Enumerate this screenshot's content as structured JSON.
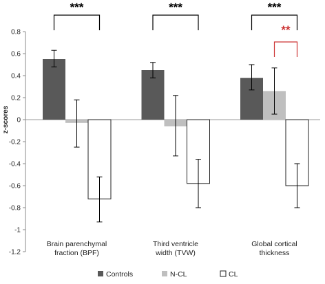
{
  "chart_data": {
    "type": "bar",
    "ylabel": "z-scores",
    "ylim": [
      -1.2,
      0.8
    ],
    "yticks": [
      "0.8",
      "0.6",
      "0.4",
      "0.2",
      "0",
      "-0.2",
      "-0.4",
      "-0.6",
      "-0.8",
      "-1",
      "-1.2"
    ],
    "ytick_values": [
      0.8,
      0.6,
      0.4,
      0.2,
      0,
      -0.2,
      -0.4,
      -0.6,
      -0.8,
      -1,
      -1.2
    ],
    "categories": [
      [
        "Brain parenchymal",
        "fraction (BPF)"
      ],
      [
        "Third ventricle",
        "width (TVW)"
      ],
      [
        "Global cortical",
        "thickness"
      ]
    ],
    "series": [
      {
        "name": "Controls",
        "color": "#595959",
        "values": [
          0.55,
          0.45,
          0.38
        ],
        "err_low": [
          0.48,
          0.38,
          0.27
        ],
        "err_high": [
          0.63,
          0.52,
          0.5
        ]
      },
      {
        "name": "N-CL",
        "color": "#bfbfbf",
        "values": [
          -0.03,
          -0.06,
          0.26
        ],
        "err_low": [
          -0.25,
          -0.33,
          0.05
        ],
        "err_high": [
          0.18,
          0.22,
          0.47
        ]
      },
      {
        "name": "CL",
        "color": "#ffffff",
        "values": [
          -0.72,
          -0.58,
          -0.6
        ],
        "err_low": [
          -0.93,
          -0.8,
          -0.8
        ],
        "err_high": [
          -0.52,
          -0.36,
          -0.4
        ]
      }
    ],
    "significance": [
      {
        "label": "***",
        "color": "#000000",
        "category": 0,
        "from_series": 0,
        "to_series": 2
      },
      {
        "label": "***",
        "color": "#000000",
        "category": 1,
        "from_series": 0,
        "to_series": 2
      },
      {
        "label": "***",
        "color": "#000000",
        "category": 2,
        "from_series": 0,
        "to_series": 2
      },
      {
        "label": "**",
        "color": "#cc3333",
        "category": 2,
        "from_series": 1,
        "to_series": 2
      }
    ],
    "grid": false,
    "legend_position": "bottom"
  }
}
